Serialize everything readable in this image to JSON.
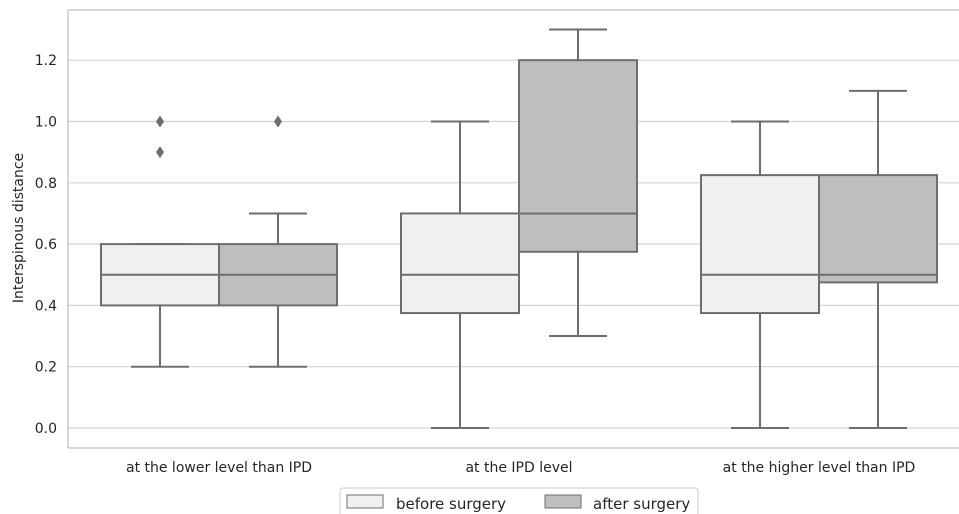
{
  "chart_data": {
    "type": "box",
    "ylabel": "Interspinous distance",
    "xlabel": "",
    "ylim": [
      -0.065,
      1.375
    ],
    "yticks": [
      0.0,
      0.2,
      0.4,
      0.6,
      0.8,
      1.0,
      1.2
    ],
    "ytick_labels": [
      "0.0",
      "0.2",
      "0.4",
      "0.6",
      "0.8",
      "1.0",
      "1.2"
    ],
    "grid": "horizontal",
    "legend_position": "bottom-center",
    "categories": [
      "at the lower level than IPD",
      "at the IPD level",
      "at the higher level than IPD"
    ],
    "series": [
      {
        "name": "before surgery",
        "color": "#f0f0f0",
        "boxes": [
          {
            "whisker_low": 0.2,
            "q1": 0.4,
            "median": 0.5,
            "q3": 0.6,
            "whisker_high": 0.6,
            "outliers": [
              0.9,
              1.0
            ]
          },
          {
            "whisker_low": 0.0,
            "q1": 0.375,
            "median": 0.5,
            "q3": 0.7,
            "whisker_high": 1.0,
            "outliers": []
          },
          {
            "whisker_low": 0.0,
            "q1": 0.375,
            "median": 0.5,
            "q3": 0.825,
            "whisker_high": 1.0,
            "outliers": []
          }
        ]
      },
      {
        "name": "after surgery",
        "color": "#bebebe",
        "boxes": [
          {
            "whisker_low": 0.2,
            "q1": 0.4,
            "median": 0.5,
            "q3": 0.6,
            "whisker_high": 0.7,
            "outliers": [
              1.0
            ]
          },
          {
            "whisker_low": 0.3,
            "q1": 0.575,
            "median": 0.7,
            "q3": 1.2,
            "whisker_high": 1.3,
            "outliers": []
          },
          {
            "whisker_low": 0.0,
            "q1": 0.475,
            "median": 0.5,
            "q3": 0.825,
            "whisker_high": 1.1,
            "outliers": []
          }
        ]
      }
    ],
    "line_color": "#6e6e6e",
    "grid_color": "#d3d3d3",
    "frame_color": "#c8c8c8"
  }
}
